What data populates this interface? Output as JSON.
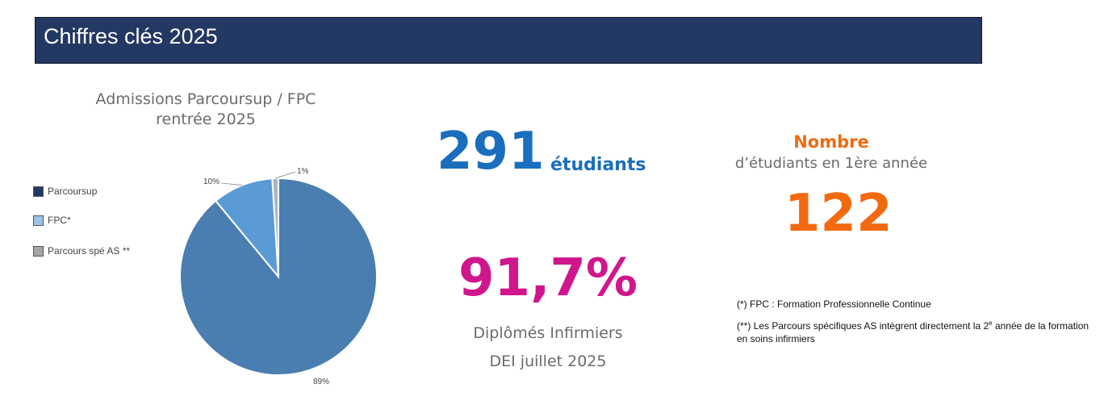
{
  "header": {
    "title": "Chiffres clés 2025"
  },
  "chart_data": {
    "type": "pie",
    "title_line1": "Admissions Parcoursup / FPC",
    "title_line2": "rentrée 2025",
    "legend_placement": "left",
    "slices": [
      {
        "name": "Parcoursup",
        "value": 89,
        "label": "89%",
        "color": "#4a7eb0",
        "legend_color": "#233862"
      },
      {
        "name": "FPC*",
        "value": 10,
        "label": "10%",
        "color": "#5b9bd5",
        "legend_color": "#9dc3e6"
      },
      {
        "name": "Parcours spé AS **",
        "value": 1,
        "label": "1%",
        "color": "#a5b7c9",
        "legend_color": "#a5a5a5"
      }
    ]
  },
  "stats": {
    "students_value": "291",
    "students_label": "étudiants",
    "diploma_value": "91,7%",
    "diploma_label1": "Diplômés Infirmiers",
    "diploma_label2": "DEI juillet 2025",
    "first_year_title": "Nombre",
    "first_year_subtitle": "d’étudiants en 1ère année",
    "first_year_value": "122"
  },
  "footnotes": {
    "fpc": "(*) FPC : Formation Professionnelle Continue",
    "as_part1": "(**) Les Parcours spécifiques AS intègrent directement la 2",
    "as_sup": "e",
    "as_part2": " année de la formation en soins infirmiers"
  }
}
